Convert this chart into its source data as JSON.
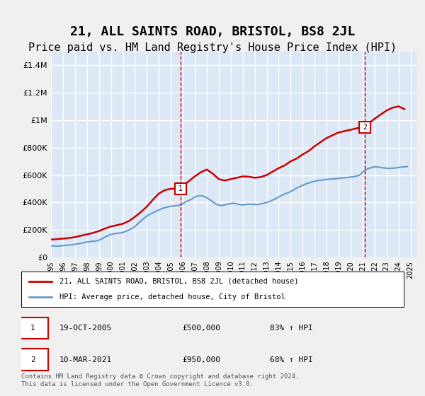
{
  "title": "21, ALL SAINTS ROAD, BRISTOL, BS8 2JL",
  "subtitle": "Price paid vs. HM Land Registry's House Price Index (HPI)",
  "title_fontsize": 13,
  "subtitle_fontsize": 11,
  "bg_color": "#dce8f5",
  "plot_bg_color": "#dce8f5",
  "grid_color": "#ffffff",
  "ylim": [
    0,
    1500000
  ],
  "yticks": [
    0,
    200000,
    400000,
    600000,
    800000,
    1000000,
    1200000,
    1400000
  ],
  "ytick_labels": [
    "£0",
    "£200K",
    "£400K",
    "£600K",
    "£800K",
    "£1M",
    "£1.2M",
    "£1.4M"
  ],
  "xlim_start": 1995.0,
  "xlim_end": 2025.5,
  "red_line_color": "#cc0000",
  "blue_line_color": "#6699cc",
  "marker1_x": 2005.8,
  "marker1_y": 500000,
  "marker2_x": 2021.2,
  "marker2_y": 950000,
  "legend_label_red": "21, ALL SAINTS ROAD, BRISTOL, BS8 2JL (detached house)",
  "legend_label_blue": "HPI: Average price, detached house, City of Bristol",
  "ann1_date": "19-OCT-2005",
  "ann1_price": "£500,000",
  "ann1_hpi": "83% ↑ HPI",
  "ann2_date": "10-MAR-2021",
  "ann2_price": "£950,000",
  "ann2_hpi": "68% ↑ HPI",
  "footer": "Contains HM Land Registry data © Crown copyright and database right 2024.\nThis data is licensed under the Open Government Licence v3.0.",
  "hpi_years": [
    1995.0,
    1995.25,
    1995.5,
    1995.75,
    1996.0,
    1996.25,
    1996.5,
    1996.75,
    1997.0,
    1997.25,
    1997.5,
    1997.75,
    1998.0,
    1998.25,
    1998.5,
    1998.75,
    1999.0,
    1999.25,
    1999.5,
    1999.75,
    2000.0,
    2000.25,
    2000.5,
    2000.75,
    2001.0,
    2001.25,
    2001.5,
    2001.75,
    2002.0,
    2002.25,
    2002.5,
    2002.75,
    2003.0,
    2003.25,
    2003.5,
    2003.75,
    2004.0,
    2004.25,
    2004.5,
    2004.75,
    2005.0,
    2005.25,
    2005.5,
    2005.75,
    2006.0,
    2006.25,
    2006.5,
    2006.75,
    2007.0,
    2007.25,
    2007.5,
    2007.75,
    2008.0,
    2008.25,
    2008.5,
    2008.75,
    2009.0,
    2009.25,
    2009.5,
    2009.75,
    2010.0,
    2010.25,
    2010.5,
    2010.75,
    2011.0,
    2011.25,
    2011.5,
    2011.75,
    2012.0,
    2012.25,
    2012.5,
    2012.75,
    2013.0,
    2013.25,
    2013.5,
    2013.75,
    2014.0,
    2014.25,
    2014.5,
    2014.75,
    2015.0,
    2015.25,
    2015.5,
    2015.75,
    2016.0,
    2016.25,
    2016.5,
    2016.75,
    2017.0,
    2017.25,
    2017.5,
    2017.75,
    2018.0,
    2018.25,
    2018.5,
    2018.75,
    2019.0,
    2019.25,
    2019.5,
    2019.75,
    2020.0,
    2020.25,
    2020.5,
    2020.75,
    2021.0,
    2021.25,
    2021.5,
    2021.75,
    2022.0,
    2022.25,
    2022.5,
    2022.75,
    2023.0,
    2023.25,
    2023.5,
    2023.75,
    2024.0,
    2024.25,
    2024.5,
    2024.75
  ],
  "hpi_values": [
    85000,
    83000,
    82000,
    83000,
    86000,
    88000,
    90000,
    92000,
    96000,
    99000,
    103000,
    108000,
    112000,
    115000,
    118000,
    120000,
    125000,
    135000,
    148000,
    158000,
    168000,
    172000,
    175000,
    178000,
    182000,
    190000,
    200000,
    210000,
    225000,
    245000,
    265000,
    285000,
    300000,
    315000,
    325000,
    335000,
    345000,
    355000,
    362000,
    368000,
    372000,
    375000,
    378000,
    380000,
    390000,
    405000,
    415000,
    425000,
    440000,
    448000,
    450000,
    445000,
    435000,
    420000,
    405000,
    390000,
    380000,
    378000,
    382000,
    388000,
    392000,
    395000,
    390000,
    385000,
    382000,
    385000,
    388000,
    388000,
    385000,
    385000,
    390000,
    395000,
    400000,
    408000,
    418000,
    428000,
    440000,
    452000,
    462000,
    470000,
    480000,
    492000,
    505000,
    515000,
    525000,
    535000,
    542000,
    548000,
    555000,
    560000,
    562000,
    565000,
    568000,
    570000,
    572000,
    573000,
    575000,
    578000,
    580000,
    582000,
    585000,
    588000,
    592000,
    600000,
    620000,
    638000,
    648000,
    655000,
    660000,
    658000,
    655000,
    652000,
    650000,
    648000,
    650000,
    652000,
    655000,
    658000,
    660000,
    662000
  ],
  "red_years": [
    1995.0,
    1995.5,
    1996.0,
    1996.5,
    1997.0,
    1997.5,
    1998.0,
    1998.5,
    1999.0,
    1999.5,
    2000.0,
    2000.5,
    2001.0,
    2001.5,
    2002.0,
    2002.5,
    2003.0,
    2003.5,
    2004.0,
    2004.5,
    2005.0,
    2005.5,
    2005.8,
    2006.0,
    2006.5,
    2007.0,
    2007.5,
    2008.0,
    2008.5,
    2009.0,
    2009.5,
    2010.0,
    2010.5,
    2011.0,
    2011.5,
    2012.0,
    2012.5,
    2013.0,
    2013.5,
    2014.0,
    2014.5,
    2015.0,
    2015.5,
    2016.0,
    2016.5,
    2017.0,
    2017.5,
    2018.0,
    2018.5,
    2019.0,
    2019.5,
    2020.0,
    2020.5,
    2021.0,
    2021.2,
    2021.5,
    2022.0,
    2022.5,
    2023.0,
    2023.5,
    2024.0,
    2024.5
  ],
  "red_values": [
    130000,
    133000,
    137000,
    141000,
    148000,
    158000,
    168000,
    178000,
    192000,
    210000,
    225000,
    235000,
    245000,
    265000,
    295000,
    330000,
    370000,
    420000,
    465000,
    490000,
    500000,
    500000,
    500000,
    520000,
    555000,
    590000,
    620000,
    640000,
    610000,
    570000,
    560000,
    570000,
    580000,
    590000,
    588000,
    580000,
    585000,
    600000,
    625000,
    650000,
    670000,
    700000,
    720000,
    750000,
    775000,
    810000,
    840000,
    870000,
    890000,
    910000,
    920000,
    930000,
    940000,
    950000,
    950000,
    975000,
    1010000,
    1040000,
    1070000,
    1090000,
    1100000,
    1080000
  ]
}
